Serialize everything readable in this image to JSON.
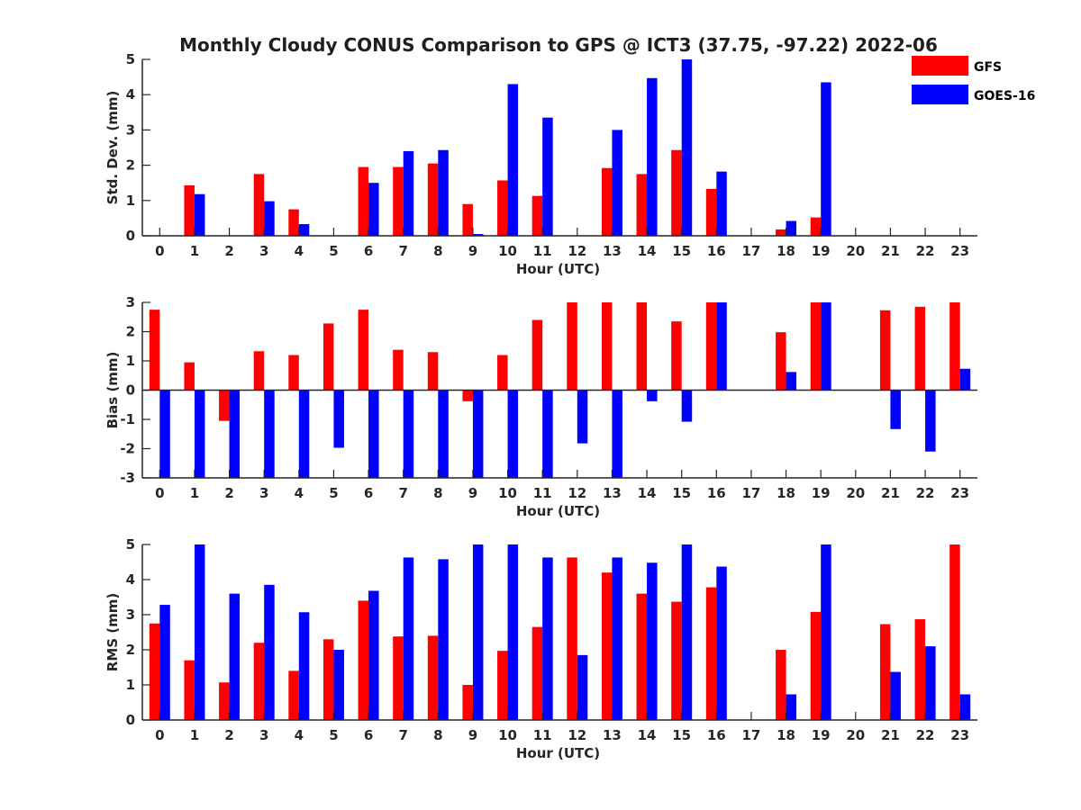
{
  "figure": {
    "title": "Monthly Cloudy CONUS Comparison to GPS @ ICT3 (37.75, -97.22) 2022-06"
  },
  "legend": {
    "position": "top-right",
    "entries": [
      {
        "label": "GFS",
        "color": "#ff0000"
      },
      {
        "label": "GOES-16",
        "color": "#0000ff"
      }
    ]
  },
  "chart_data": [
    {
      "type": "bar",
      "xlabel": "Hour (UTC)",
      "ylabel": "Std. Dev. (mm)",
      "ylim": [
        0,
        5
      ],
      "yticks": [
        0,
        1,
        2,
        3,
        4,
        5
      ],
      "categories": [
        "0",
        "1",
        "2",
        "3",
        "4",
        "5",
        "6",
        "7",
        "8",
        "9",
        "10",
        "11",
        "12",
        "13",
        "14",
        "15",
        "16",
        "17",
        "18",
        "19",
        "20",
        "21",
        "22",
        "23"
      ],
      "series": [
        {
          "name": "GFS",
          "color": "#ff0000",
          "values": [
            null,
            1.43,
            null,
            1.75,
            0.75,
            null,
            1.95,
            1.95,
            2.05,
            0.9,
            1.57,
            1.13,
            null,
            1.92,
            1.75,
            2.43,
            1.33,
            null,
            0.18,
            0.52,
            null,
            null,
            null,
            null
          ]
        },
        {
          "name": "GOES-16",
          "color": "#0000ff",
          "values": [
            null,
            1.18,
            null,
            0.98,
            0.33,
            null,
            1.5,
            2.4,
            2.43,
            0.05,
            4.3,
            3.35,
            null,
            3.0,
            4.47,
            5.0,
            1.82,
            null,
            0.42,
            4.35,
            null,
            null,
            null,
            null
          ]
        }
      ]
    },
    {
      "type": "bar",
      "xlabel": "Hour (UTC)",
      "ylabel": "Bias (mm)",
      "ylim": [
        -3,
        3
      ],
      "yticks": [
        -3,
        -2,
        -1,
        0,
        1,
        2,
        3
      ],
      "categories": [
        "0",
        "1",
        "2",
        "3",
        "4",
        "5",
        "6",
        "7",
        "8",
        "9",
        "10",
        "11",
        "12",
        "13",
        "14",
        "15",
        "16",
        "17",
        "18",
        "19",
        "20",
        "21",
        "22",
        "23"
      ],
      "series": [
        {
          "name": "GFS",
          "color": "#ff0000",
          "values": [
            2.75,
            0.95,
            -1.05,
            1.33,
            1.2,
            2.28,
            2.75,
            1.38,
            1.3,
            -0.38,
            1.2,
            2.4,
            3.0,
            3.0,
            3.0,
            2.35,
            3.0,
            null,
            1.98,
            3.0,
            null,
            2.73,
            2.85,
            3.0
          ]
        },
        {
          "name": "GOES-16",
          "color": "#0000ff",
          "values": [
            -3.0,
            -3.0,
            -3.0,
            -3.0,
            -3.0,
            -1.97,
            -3.0,
            -3.0,
            -3.0,
            -3.0,
            -3.0,
            -3.0,
            -1.82,
            -3.0,
            -0.38,
            -1.08,
            3.0,
            null,
            0.62,
            3.0,
            null,
            -1.33,
            -2.1,
            0.73
          ]
        }
      ]
    },
    {
      "type": "bar",
      "xlabel": "Hour (UTC)",
      "ylabel": "RMS (mm)",
      "ylim": [
        0,
        5
      ],
      "yticks": [
        0,
        1,
        2,
        3,
        4,
        5
      ],
      "categories": [
        "0",
        "1",
        "2",
        "3",
        "4",
        "5",
        "6",
        "7",
        "8",
        "9",
        "10",
        "11",
        "12",
        "13",
        "14",
        "15",
        "16",
        "17",
        "18",
        "19",
        "20",
        "21",
        "22",
        "23"
      ],
      "series": [
        {
          "name": "GFS",
          "color": "#ff0000",
          "values": [
            2.75,
            1.7,
            1.07,
            2.2,
            1.4,
            2.3,
            3.4,
            2.38,
            2.4,
            1.0,
            1.97,
            2.65,
            4.63,
            4.2,
            3.6,
            3.37,
            3.78,
            null,
            2.0,
            3.08,
            null,
            2.73,
            2.87,
            5.0
          ]
        },
        {
          "name": "GOES-16",
          "color": "#0000ff",
          "values": [
            3.28,
            5.0,
            3.6,
            3.85,
            3.07,
            2.0,
            3.68,
            4.63,
            4.58,
            5.0,
            5.0,
            4.63,
            1.85,
            4.63,
            4.48,
            5.0,
            4.37,
            null,
            0.73,
            5.0,
            null,
            1.37,
            2.1,
            0.73
          ]
        }
      ]
    }
  ]
}
